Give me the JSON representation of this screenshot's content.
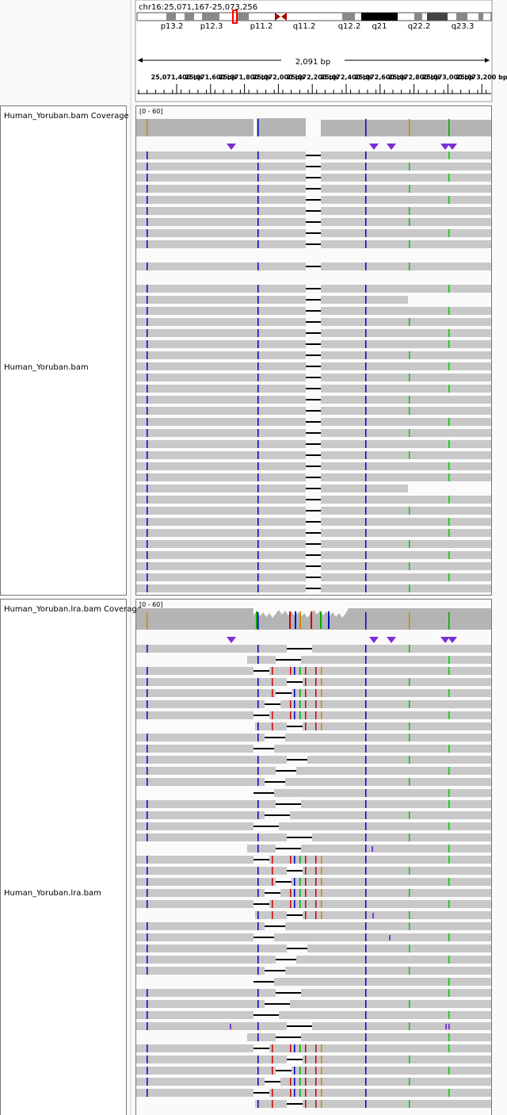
{
  "locus": "chr16:25,071,167-25,073,256",
  "cytobands": [
    "p13.2",
    "p12.3",
    "p11.2",
    "q11.2",
    "q12.2",
    "q21",
    "q22.2",
    "q23.3"
  ],
  "span": "2,091 bp",
  "ruler_labels": [
    "25,071,400 bp",
    "25,071,600 bp",
    "25,071,800 bp",
    "25,072,000 bp",
    "25,072,200 bp",
    "25,072,400 bp",
    "25,072,600 bp",
    "25,072,800 bp",
    "25,073,000 bp",
    "25,073,200 bp"
  ],
  "tracks": [
    {
      "coverage_name": "Human_Yoruban.bam Coverage",
      "name": "Human_Yoruban.bam",
      "range": "[0 - 60]"
    },
    {
      "coverage_name": "Human_Yoruban.lra.bam Coverage",
      "name": "Human_Yoruban.lra.bam",
      "range": "[0 - 60]"
    }
  ],
  "insertion_marks": [
    "I",
    "I",
    "I",
    "I",
    "II"
  ]
}
